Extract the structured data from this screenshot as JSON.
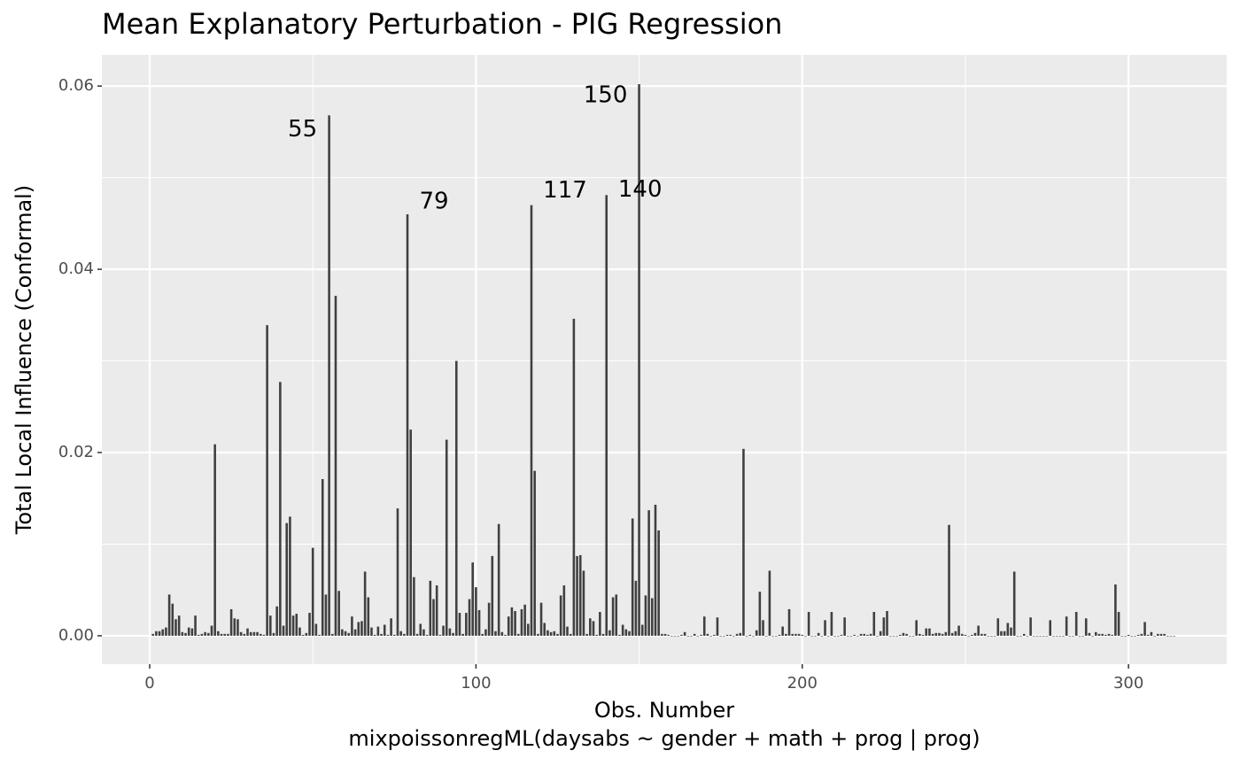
{
  "chart_data": {
    "type": "bar",
    "title": "Mean Explanatory Perturbation - PIG Regression",
    "xlabel": "Obs. Number",
    "caption": "mixpoissonregML(daysabs ~ gender + math + prog | prog)",
    "ylabel": "Total Local Influence (Conformal)",
    "color": "#404040",
    "grid": true,
    "xlim": [
      -14.66,
      330.1
    ],
    "ylim": [
      -0.0031,
      0.0634
    ],
    "xticks": [
      0,
      100,
      200,
      300
    ],
    "yticks": [
      {
        "value": 0,
        "label": "0.00"
      },
      {
        "value": 0.02,
        "label": "0.02"
      },
      {
        "value": 0.04,
        "label": "0.04"
      },
      {
        "value": 0.06,
        "label": "0.06"
      }
    ],
    "xminor": [
      50,
      150,
      250
    ],
    "yminor": [
      0.01,
      0.03,
      0.05
    ],
    "annotations": [
      "55",
      "79",
      "117",
      "140",
      "150"
    ],
    "x": [
      1,
      2,
      3,
      4,
      5,
      6,
      7,
      8,
      9,
      10,
      11,
      12,
      13,
      14,
      15,
      16,
      17,
      18,
      19,
      20,
      21,
      22,
      23,
      24,
      25,
      26,
      27,
      28,
      29,
      30,
      31,
      32,
      33,
      34,
      35,
      36,
      37,
      38,
      39,
      40,
      41,
      42,
      43,
      44,
      45,
      46,
      47,
      48,
      49,
      50,
      51,
      52,
      53,
      54,
      55,
      56,
      57,
      58,
      59,
      60,
      61,
      62,
      63,
      64,
      65,
      66,
      67,
      68,
      69,
      70,
      71,
      72,
      73,
      74,
      75,
      76,
      77,
      78,
      79,
      80,
      81,
      82,
      83,
      84,
      85,
      86,
      87,
      88,
      89,
      90,
      91,
      92,
      93,
      94,
      95,
      96,
      97,
      98,
      99,
      100,
      101,
      102,
      103,
      104,
      105,
      106,
      107,
      108,
      109,
      110,
      111,
      112,
      113,
      114,
      115,
      116,
      117,
      118,
      119,
      120,
      121,
      122,
      123,
      124,
      125,
      126,
      127,
      128,
      129,
      130,
      131,
      132,
      133,
      134,
      135,
      136,
      137,
      138,
      139,
      140,
      141,
      142,
      143,
      144,
      145,
      146,
      147,
      148,
      149,
      150,
      151,
      152,
      153,
      154,
      155,
      156,
      157,
      158,
      159,
      160,
      161,
      162,
      163,
      164,
      165,
      166,
      167,
      168,
      169,
      170,
      171,
      172,
      173,
      174,
      175,
      176,
      177,
      178,
      179,
      180,
      181,
      182,
      183,
      184,
      185,
      186,
      187,
      188,
      189,
      190,
      191,
      192,
      193,
      194,
      195,
      196,
      197,
      198,
      199,
      200,
      201,
      202,
      203,
      204,
      205,
      206,
      207,
      208,
      209,
      210,
      211,
      212,
      213,
      214,
      215,
      216,
      217,
      218,
      219,
      220,
      221,
      222,
      223,
      224,
      225,
      226,
      227,
      228,
      229,
      230,
      231,
      232,
      233,
      234,
      235,
      236,
      237,
      238,
      239,
      240,
      241,
      242,
      243,
      244,
      245,
      246,
      247,
      248,
      249,
      250,
      251,
      252,
      253,
      254,
      255,
      256,
      257,
      258,
      259,
      260,
      261,
      262,
      263,
      264,
      265,
      266,
      267,
      268,
      269,
      270,
      271,
      272,
      273,
      274,
      275,
      276,
      277,
      278,
      279,
      280,
      281,
      282,
      283,
      284,
      285,
      286,
      287,
      288,
      289,
      290,
      291,
      292,
      293,
      294,
      295,
      296,
      297,
      298,
      299,
      300,
      301,
      302,
      303,
      304,
      305,
      306,
      307,
      308,
      309,
      310,
      311,
      312,
      313,
      314
    ],
    "values": [
      0.0002,
      0.0005,
      0.0005,
      0.0007,
      0.0009,
      0.0045,
      0.0035,
      0.0018,
      0.0022,
      0.0004,
      0.0003,
      0.0009,
      0.0008,
      0.0022,
      0.0001,
      0.0002,
      0.0004,
      0.0003,
      0.0011,
      0.0209,
      0.0005,
      0.0002,
      0.0002,
      0.0002,
      0.0029,
      0.0019,
      0.0018,
      0.0004,
      0.0002,
      0.0008,
      0.0004,
      0.0004,
      0.0004,
      0.0002,
      0.0001,
      0.0339,
      0.0022,
      0.0003,
      0.0032,
      0.0277,
      0.0011,
      0.0123,
      0.013,
      0.0022,
      0.0024,
      0.0009,
      0.0001,
      0.0003,
      0.0025,
      0.0096,
      0.0013,
      0.0001,
      0.0171,
      0.0045,
      0.0568,
      0.0002,
      0.0371,
      0.0049,
      0.0007,
      0.0005,
      0.0003,
      0.0021,
      0.0007,
      0.0015,
      0.0016,
      0.007,
      0.0042,
      0.0009,
      0.0001,
      0.001,
      0.0002,
      0.0012,
      0.0001,
      0.0019,
      0.0001,
      0.0139,
      0.0005,
      0.0002,
      0.046,
      0.0225,
      0.0064,
      0.0002,
      0.0013,
      0.0007,
      0.0001,
      0.006,
      0.004,
      0.0055,
      0.0001,
      0.0011,
      0.0214,
      0.0008,
      0.0003,
      0.03,
      0.0025,
      0.0002,
      0.0025,
      0.004,
      0.008,
      0.0053,
      0.0028,
      0.0002,
      0.0007,
      0.0036,
      0.0087,
      0.0005,
      0.0122,
      0.0004,
      0.0001,
      0.0021,
      0.0031,
      0.0027,
      0.0002,
      0.0029,
      0.0034,
      0.0013,
      0.047,
      0.018,
      0.0002,
      0.0036,
      0.0014,
      0.0006,
      0.0004,
      0.0005,
      0.0002,
      0.0044,
      0.0055,
      0.001,
      0.0002,
      0.0346,
      0.0087,
      0.0088,
      0.0071,
      0.0002,
      0.0019,
      0.0016,
      0.0001,
      0.0026,
      0.0002,
      0.0481,
      0.0006,
      0.0042,
      0.0045,
      0.0001,
      0.0012,
      0.0007,
      0.0005,
      0.0128,
      0.006,
      0.0602,
      0.0012,
      0.0044,
      0.0137,
      0.0041,
      0.0143,
      0.0115,
      0.0002,
      0.0002,
      0.0001,
      0,
      0,
      0,
      0.0001,
      0.0004,
      0,
      0,
      0.0002,
      0,
      0.0001,
      0.0021,
      0.0002,
      0,
      0.0001,
      0.002,
      0,
      0,
      0.0001,
      0.0001,
      0,
      0.0002,
      0.0003,
      0.0204,
      0,
      0.0001,
      0,
      0.0006,
      0.0048,
      0.0017,
      0,
      0.0071,
      0,
      0,
      0.0001,
      0.001,
      0.0002,
      0.0029,
      0.0002,
      0.0002,
      0.0002,
      0.0001,
      0,
      0.0026,
      0,
      0,
      0.0003,
      0,
      0.0017,
      0,
      0.0026,
      0,
      0,
      0.0001,
      0.002,
      0,
      0,
      0.0001,
      0,
      0.0002,
      0.0002,
      0.0001,
      0.0002,
      0.0026,
      0,
      0.0005,
      0.002,
      0.0027,
      0,
      0,
      0,
      0.0001,
      0.0003,
      0.0002,
      0,
      0,
      0.0017,
      0.0002,
      0.0001,
      0.0008,
      0.0008,
      0.0002,
      0.0003,
      0.0003,
      0.0002,
      0.0004,
      0.0121,
      0.0003,
      0.0005,
      0.0011,
      0.0002,
      0.0001,
      0,
      0.0001,
      0.0003,
      0.0011,
      0.0002,
      0.0002,
      0,
      0,
      0,
      0.0019,
      0.0005,
      0.0005,
      0.0014,
      0.0009,
      0.007,
      0,
      0,
      0.0002,
      0,
      0.002,
      0,
      0,
      0,
      0,
      0,
      0.0017,
      0,
      0,
      0,
      0,
      0.0021,
      0,
      0,
      0.0026,
      0,
      0,
      0.0019,
      0.0003,
      0,
      0.0004,
      0.0002,
      0.0002,
      0.0001,
      0.0002,
      0.0001,
      0.0056,
      0.0026,
      0,
      0,
      0.0001,
      0,
      0,
      0.0001,
      0.0002,
      0.0015,
      0.0001,
      0.0004,
      0,
      0.0002,
      0.0002,
      0.0002,
      0,
      0,
      0
    ]
  }
}
